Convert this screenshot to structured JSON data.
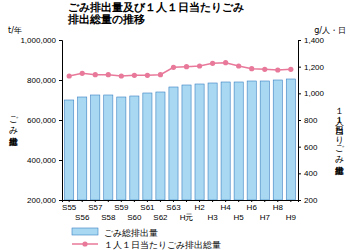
{
  "chart_data": {
    "type": "bar",
    "title": [
      "ごみ排出量及び１人１日当たりごみ",
      "排出総量の推移"
    ],
    "y_unit": "t/年",
    "y2_unit": "g/人・日",
    "ylabel": "ごみ総排出量",
    "y2label": "１人１日当たりごみ排出総量",
    "categories": [
      "S55",
      "S56",
      "S57",
      "S58",
      "S59",
      "S60",
      "S61",
      "S62",
      "S63",
      "H元",
      "H2",
      "H3",
      "H4",
      "H5",
      "H6",
      "H7",
      "H8",
      "H9"
    ],
    "series": [
      {
        "name": "ごみ総排出量",
        "type": "bar",
        "color": "#a9d9f2",
        "values": [
          700000,
          715000,
          725000,
          725000,
          715000,
          720000,
          735000,
          740000,
          765000,
          775000,
          780000,
          785000,
          790000,
          790000,
          795000,
          795000,
          800000,
          805000
        ]
      },
      {
        "name": "１人１日当たりごみ排出総量",
        "type": "line",
        "axis": "y2",
        "color": "#e8799a",
        "marker": "circle",
        "values": [
          1130,
          1150,
          1140,
          1140,
          1130,
          1135,
          1135,
          1140,
          1195,
          1200,
          1205,
          1225,
          1230,
          1205,
          1185,
          1180,
          1175,
          1180
        ]
      }
    ],
    "ylim": [
      200000,
      1000000
    ],
    "yticks": [
      {
        "value": 200000,
        "label": "200,000"
      },
      {
        "value": 400000,
        "label": "400,000"
      },
      {
        "value": 600000,
        "label": "600,000"
      },
      {
        "value": 800000,
        "label": "800,000"
      },
      {
        "value": 1000000,
        "label": "1,000,000"
      }
    ],
    "y2lim": [
      200,
      1400
    ],
    "y2ticks": [
      200,
      400,
      600,
      800,
      {
        "value": 1000,
        "label": "1,000"
      },
      {
        "value": 1200,
        "label": "1,200"
      },
      {
        "value": 1400,
        "label": "1,400"
      }
    ],
    "legend": "bottom",
    "grid": false
  }
}
